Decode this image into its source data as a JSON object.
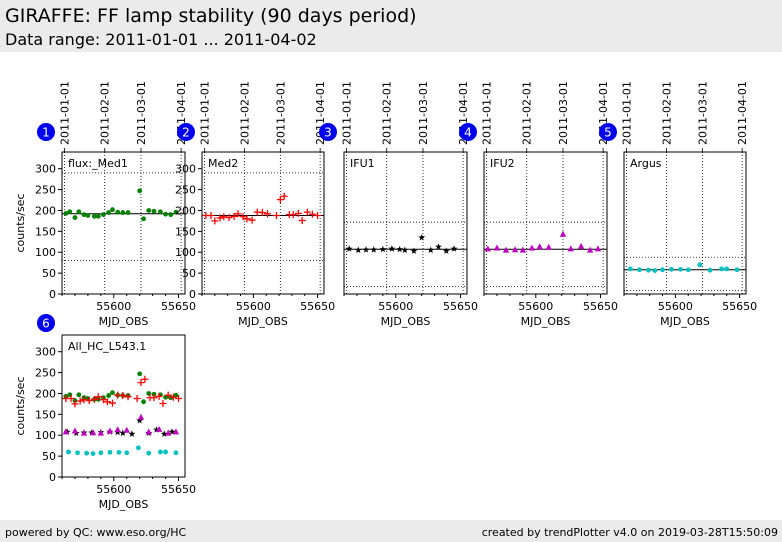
{
  "header": {
    "title": "GIRAFFE: FF lamp stability (90 days period)",
    "subtitle": "Data range: 2011-01-01 ... 2011-04-02"
  },
  "footer": {
    "left": "powered by QC: www.eso.org/HC",
    "right": "created by trendPlotter v4.0 on 2019-03-28T15:50:09"
  },
  "colors": {
    "Med1": "#008000",
    "Med2": "#ff0000",
    "IFU1": "#000000",
    "IFU2": "#c000c0",
    "Argus": "#00c0c0"
  },
  "chart_data": [
    {
      "type": "scatter",
      "number": "1",
      "label": "flux:_Med1",
      "show_top_dates": true,
      "ylabel": "counts/sec",
      "xlabel": "MJD_OBS",
      "xlim": [
        55560,
        55655
      ],
      "ylim": [
        0,
        340
      ],
      "xticks": [
        55600,
        55650
      ],
      "yticks": [
        0,
        50,
        100,
        150,
        200,
        250,
        300
      ],
      "date_ticks": [
        {
          "label": "2011-01-01",
          "mjd": 55562
        },
        {
          "label": "2011-02-01",
          "mjd": 55593
        },
        {
          "label": "2011-03-01",
          "mjd": 55621
        },
        {
          "label": "2011-04-01",
          "mjd": 55652
        }
      ],
      "ref_lines": {
        "mean": 192,
        "upper": 290,
        "lower": 80
      },
      "series": [
        {
          "key": "Med1",
          "marker": "dot",
          "x": [
            55563,
            55566,
            55570,
            55573,
            55577,
            55580,
            55585,
            55588,
            55592,
            55596,
            55599,
            55603,
            55607,
            55611,
            55620,
            55623,
            55627,
            55631,
            55636,
            55640,
            55644,
            55648
          ],
          "y": [
            193,
            197,
            183,
            197,
            190,
            188,
            186,
            186,
            190,
            195,
            202,
            196,
            195,
            195,
            247,
            180,
            200,
            198,
            197,
            191,
            190,
            196
          ]
        }
      ]
    },
    {
      "type": "scatter",
      "number": "2",
      "label": "Med2",
      "show_top_dates": true,
      "ylabel": "",
      "xlabel": "MJD_OBS",
      "xlim": [
        55560,
        55655
      ],
      "ylim": [
        0,
        340
      ],
      "xticks": [
        55600,
        55650
      ],
      "yticks": [
        0,
        50,
        100,
        150,
        200,
        250,
        300
      ],
      "date_ticks": [
        {
          "label": "2011-01-01",
          "mjd": 55562
        },
        {
          "label": "2011-02-01",
          "mjd": 55593
        },
        {
          "label": "2011-03-01",
          "mjd": 55621
        },
        {
          "label": "2011-04-01",
          "mjd": 55652
        }
      ],
      "ref_lines": {
        "mean": 188,
        "upper": 290,
        "lower": 80
      },
      "series": [
        {
          "key": "Med2",
          "marker": "plus",
          "x": [
            55563,
            55567,
            55570,
            55574,
            55577,
            55581,
            55585,
            55588,
            55592,
            55595,
            55599,
            55603,
            55607,
            55611,
            55618,
            55621,
            55624,
            55628,
            55631,
            55635,
            55638,
            55642,
            55646,
            55650
          ],
          "y": [
            188,
            188,
            175,
            182,
            185,
            183,
            186,
            192,
            185,
            180,
            177,
            196,
            195,
            192,
            188,
            226,
            234,
            190,
            190,
            193,
            176,
            196,
            191,
            188
          ]
        }
      ]
    },
    {
      "type": "scatter",
      "number": "3",
      "label": "IFU1",
      "show_top_dates": true,
      "ylabel": "",
      "xlabel": "MJD_OBS",
      "xlim": [
        55560,
        55655
      ],
      "ylim": [
        0,
        340
      ],
      "xticks": [
        55600,
        55650
      ],
      "yticks": [],
      "date_ticks": [
        {
          "label": "2011-01-01",
          "mjd": 55562
        },
        {
          "label": "2011-02-01",
          "mjd": 55593
        },
        {
          "label": "2011-03-01",
          "mjd": 55621
        },
        {
          "label": "2011-04-01",
          "mjd": 55652
        }
      ],
      "ref_lines": {
        "mean": 107,
        "upper": 172,
        "lower": 18
      },
      "series": [
        {
          "key": "IFU1",
          "marker": "star",
          "x": [
            55564,
            55571,
            55577,
            55583,
            55590,
            55597,
            55603,
            55607,
            55614,
            55620,
            55627,
            55633,
            55639,
            55645
          ],
          "y": [
            108,
            105,
            106,
            106,
            107,
            108,
            107,
            105,
            103,
            135,
            105,
            113,
            103,
            108
          ]
        }
      ]
    },
    {
      "type": "scatter",
      "number": "4",
      "label": "IFU2",
      "show_top_dates": true,
      "ylabel": "",
      "xlabel": "MJD_OBS",
      "xlim": [
        55560,
        55655
      ],
      "ylim": [
        0,
        340
      ],
      "xticks": [
        55600,
        55650
      ],
      "yticks": [],
      "date_ticks": [
        {
          "label": "2011-01-01",
          "mjd": 55562
        },
        {
          "label": "2011-02-01",
          "mjd": 55593
        },
        {
          "label": "2011-03-01",
          "mjd": 55621
        },
        {
          "label": "2011-04-01",
          "mjd": 55652
        }
      ],
      "ref_lines": {
        "mean": 107,
        "upper": 172,
        "lower": 18
      },
      "series": [
        {
          "key": "IFU2",
          "marker": "triangle",
          "x": [
            55563,
            55570,
            55577,
            55584,
            55590,
            55597,
            55603,
            55610,
            55621,
            55627,
            55635,
            55642,
            55648
          ],
          "y": [
            108,
            110,
            105,
            106,
            105,
            110,
            113,
            112,
            143,
            108,
            114,
            105,
            108
          ]
        }
      ]
    },
    {
      "type": "scatter",
      "number": "5",
      "label": "Argus",
      "show_top_dates": true,
      "ylabel": "",
      "xlabel": "MJD_OBS",
      "xlim": [
        55560,
        55655
      ],
      "ylim": [
        0,
        340
      ],
      "xticks": [
        55600,
        55650
      ],
      "yticks": [],
      "date_ticks": [
        {
          "label": "2011-01-01",
          "mjd": 55562
        },
        {
          "label": "2011-02-01",
          "mjd": 55593
        },
        {
          "label": "2011-03-01",
          "mjd": 55621
        },
        {
          "label": "2011-04-01",
          "mjd": 55652
        }
      ],
      "ref_lines": {
        "mean": 58,
        "upper": 88,
        "lower": 8
      },
      "series": [
        {
          "key": "Argus",
          "marker": "dot",
          "x": [
            55565,
            55572,
            55579,
            55584,
            55590,
            55597,
            55604,
            55610,
            55619,
            55627,
            55636,
            55640,
            55648
          ],
          "y": [
            60,
            58,
            57,
            56,
            58,
            59,
            59,
            58,
            70,
            57,
            60,
            60,
            58
          ]
        }
      ]
    },
    {
      "type": "scatter",
      "number": "6",
      "label": "All_HC_L543.1",
      "show_top_dates": false,
      "ylabel": "counts/sec",
      "xlabel": "MJD_OBS",
      "xlim": [
        55560,
        55655
      ],
      "ylim": [
        0,
        340
      ],
      "xticks": [
        55600,
        55650
      ],
      "yticks": [
        0,
        50,
        100,
        150,
        200,
        250,
        300
      ],
      "ref_lines": null,
      "series": [
        {
          "key": "Med1",
          "marker": "dot",
          "x": [
            55563,
            55566,
            55570,
            55573,
            55577,
            55580,
            55585,
            55588,
            55592,
            55596,
            55599,
            55603,
            55607,
            55611,
            55620,
            55623,
            55627,
            55631,
            55636,
            55640,
            55644,
            55648
          ],
          "y": [
            193,
            197,
            183,
            197,
            190,
            188,
            186,
            186,
            190,
            195,
            202,
            196,
            195,
            195,
            247,
            180,
            200,
            198,
            197,
            191,
            190,
            196
          ]
        },
        {
          "key": "Med2",
          "marker": "plus",
          "x": [
            55563,
            55567,
            55570,
            55574,
            55577,
            55581,
            55585,
            55588,
            55592,
            55595,
            55599,
            55603,
            55607,
            55611,
            55618,
            55621,
            55624,
            55628,
            55631,
            55635,
            55638,
            55642,
            55646,
            55650
          ],
          "y": [
            188,
            188,
            175,
            182,
            185,
            183,
            186,
            192,
            185,
            180,
            177,
            196,
            195,
            192,
            188,
            226,
            234,
            190,
            190,
            193,
            176,
            196,
            191,
            188
          ]
        },
        {
          "key": "IFU1",
          "marker": "star",
          "x": [
            55564,
            55571,
            55577,
            55583,
            55590,
            55597,
            55603,
            55607,
            55614,
            55620,
            55627,
            55633,
            55639,
            55645
          ],
          "y": [
            108,
            105,
            106,
            106,
            107,
            108,
            107,
            105,
            103,
            135,
            105,
            113,
            103,
            108
          ]
        },
        {
          "key": "IFU2",
          "marker": "triangle",
          "x": [
            55563,
            55570,
            55577,
            55584,
            55590,
            55597,
            55603,
            55610,
            55621,
            55627,
            55635,
            55642,
            55648
          ],
          "y": [
            108,
            110,
            105,
            106,
            105,
            110,
            113,
            112,
            143,
            108,
            114,
            105,
            108
          ]
        },
        {
          "key": "Argus",
          "marker": "dot",
          "x": [
            55565,
            55572,
            55579,
            55584,
            55590,
            55597,
            55604,
            55610,
            55619,
            55627,
            55636,
            55640,
            55648
          ],
          "y": [
            60,
            58,
            57,
            56,
            58,
            59,
            59,
            58,
            70,
            57,
            60,
            60,
            58
          ]
        }
      ]
    }
  ]
}
